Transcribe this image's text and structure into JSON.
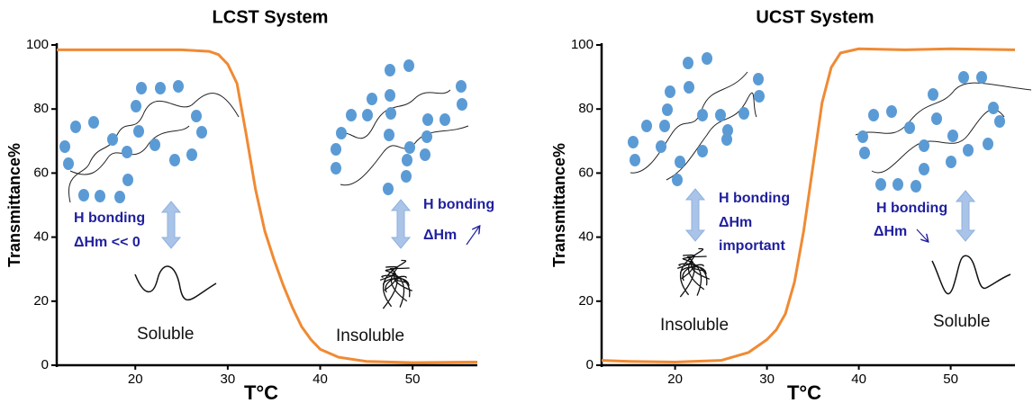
{
  "chart_data": [
    {
      "type": "line",
      "title": "LCST System",
      "xlabel": "T°C",
      "ylabel": "Transmittance%",
      "x": [
        11.5,
        15,
        20,
        25,
        28,
        29,
        30,
        31,
        32,
        33,
        34,
        35,
        36,
        37,
        38,
        39,
        40,
        42,
        45,
        50,
        57
      ],
      "series": [
        {
          "name": null,
          "color": "#f08a33",
          "values": [
            98.5,
            98.5,
            98.5,
            98.5,
            98,
            97,
            94,
            88,
            72,
            55,
            42,
            33,
            25,
            18,
            12,
            8,
            5,
            2.5,
            1.2,
            0.8,
            1
          ]
        }
      ],
      "xlim": [
        11.5,
        57
      ],
      "ylim": [
        0,
        100
      ],
      "xticks": [
        20,
        30,
        40,
        50
      ],
      "yticks": [
        0,
        20,
        40,
        60,
        80,
        100
      ],
      "annotations": [
        "H bonding",
        "ΔHm << 0",
        "Soluble",
        "H bonding",
        "ΔHm",
        "Insoluble"
      ]
    },
    {
      "type": "line",
      "title": "UCST System",
      "xlabel": "T°C",
      "ylabel": "Transmittance%",
      "x": [
        12,
        15,
        20,
        25,
        28,
        30,
        31,
        32,
        33,
        34,
        35,
        36,
        37,
        38,
        40,
        45,
        50,
        57
      ],
      "series": [
        {
          "name": null,
          "color": "#f08a33",
          "values": [
            1.5,
            1.2,
            1,
            1.5,
            4,
            8,
            11,
            16,
            26,
            42,
            62,
            82,
            93,
            97.5,
            98.8,
            98.5,
            98.8,
            98.5
          ]
        }
      ],
      "xlim": [
        12,
        57
      ],
      "ylim": [
        0,
        100
      ],
      "xticks": [
        20,
        30,
        40,
        50
      ],
      "yticks": [
        0,
        20,
        40,
        60,
        80,
        100
      ],
      "annotations": [
        "H bonding",
        "ΔHm",
        "important",
        "Insoluble",
        "H bonding",
        "ΔHm",
        "Soluble"
      ]
    }
  ]
}
